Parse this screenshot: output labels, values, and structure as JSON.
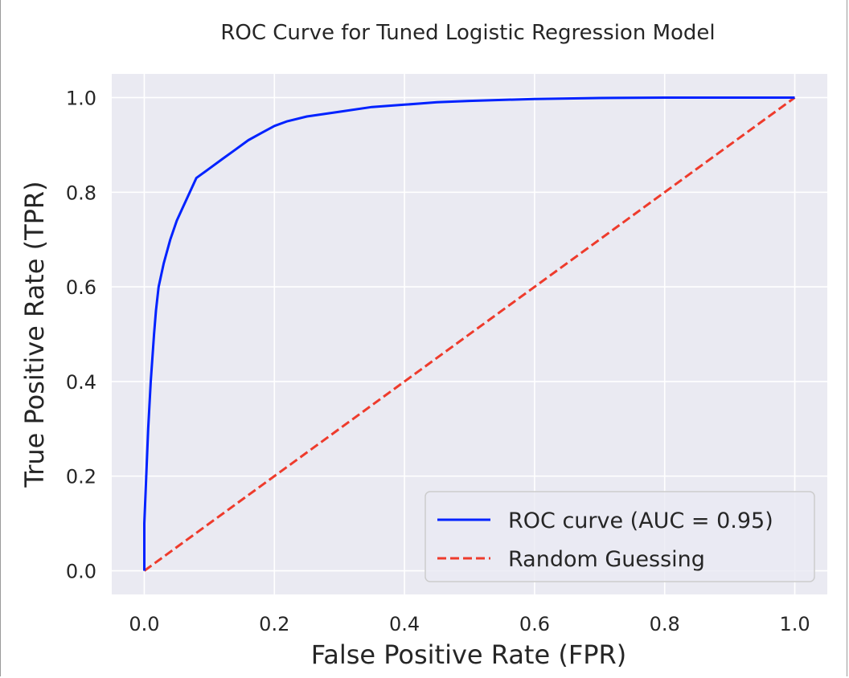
{
  "chart_data": {
    "type": "line",
    "title": "ROC Curve for Tuned Logistic Regression Model",
    "xlabel": "False Positive Rate (FPR)",
    "ylabel": "True Positive Rate (TPR)",
    "xlim": [
      -0.05,
      1.05
    ],
    "ylim": [
      -0.05,
      1.05
    ],
    "xticks": [
      0.0,
      0.2,
      0.4,
      0.6,
      0.8,
      1.0
    ],
    "yticks": [
      0.0,
      0.2,
      0.4,
      0.6,
      0.8,
      1.0
    ],
    "xtick_labels": [
      "0.0",
      "0.2",
      "0.4",
      "0.6",
      "0.8",
      "1.0"
    ],
    "ytick_labels": [
      "0.0",
      "0.2",
      "0.4",
      "0.6",
      "0.8",
      "1.0"
    ],
    "grid": true,
    "legend_position": "lower-right",
    "background": "#eaeaf2",
    "series": [
      {
        "name": "ROC curve (AUC = 0.95)",
        "color": "#0022ff",
        "style": "solid",
        "x": [
          0.0,
          0.0,
          0.003,
          0.006,
          0.01,
          0.015,
          0.018,
          0.022,
          0.03,
          0.04,
          0.05,
          0.06,
          0.07,
          0.08,
          0.09,
          0.1,
          0.12,
          0.14,
          0.16,
          0.18,
          0.2,
          0.22,
          0.25,
          0.3,
          0.35,
          0.4,
          0.45,
          0.5,
          0.6,
          0.7,
          0.8,
          0.9,
          1.0
        ],
        "y": [
          0.0,
          0.1,
          0.2,
          0.3,
          0.4,
          0.5,
          0.55,
          0.6,
          0.65,
          0.7,
          0.74,
          0.77,
          0.8,
          0.83,
          0.84,
          0.85,
          0.87,
          0.89,
          0.91,
          0.925,
          0.94,
          0.95,
          0.96,
          0.97,
          0.98,
          0.985,
          0.99,
          0.993,
          0.997,
          0.999,
          1.0,
          1.0,
          1.0
        ]
      },
      {
        "name": "Random Guessing",
        "color": "#ee3b2c",
        "style": "dashed",
        "x": [
          0.0,
          1.0
        ],
        "y": [
          0.0,
          1.0
        ]
      }
    ]
  }
}
